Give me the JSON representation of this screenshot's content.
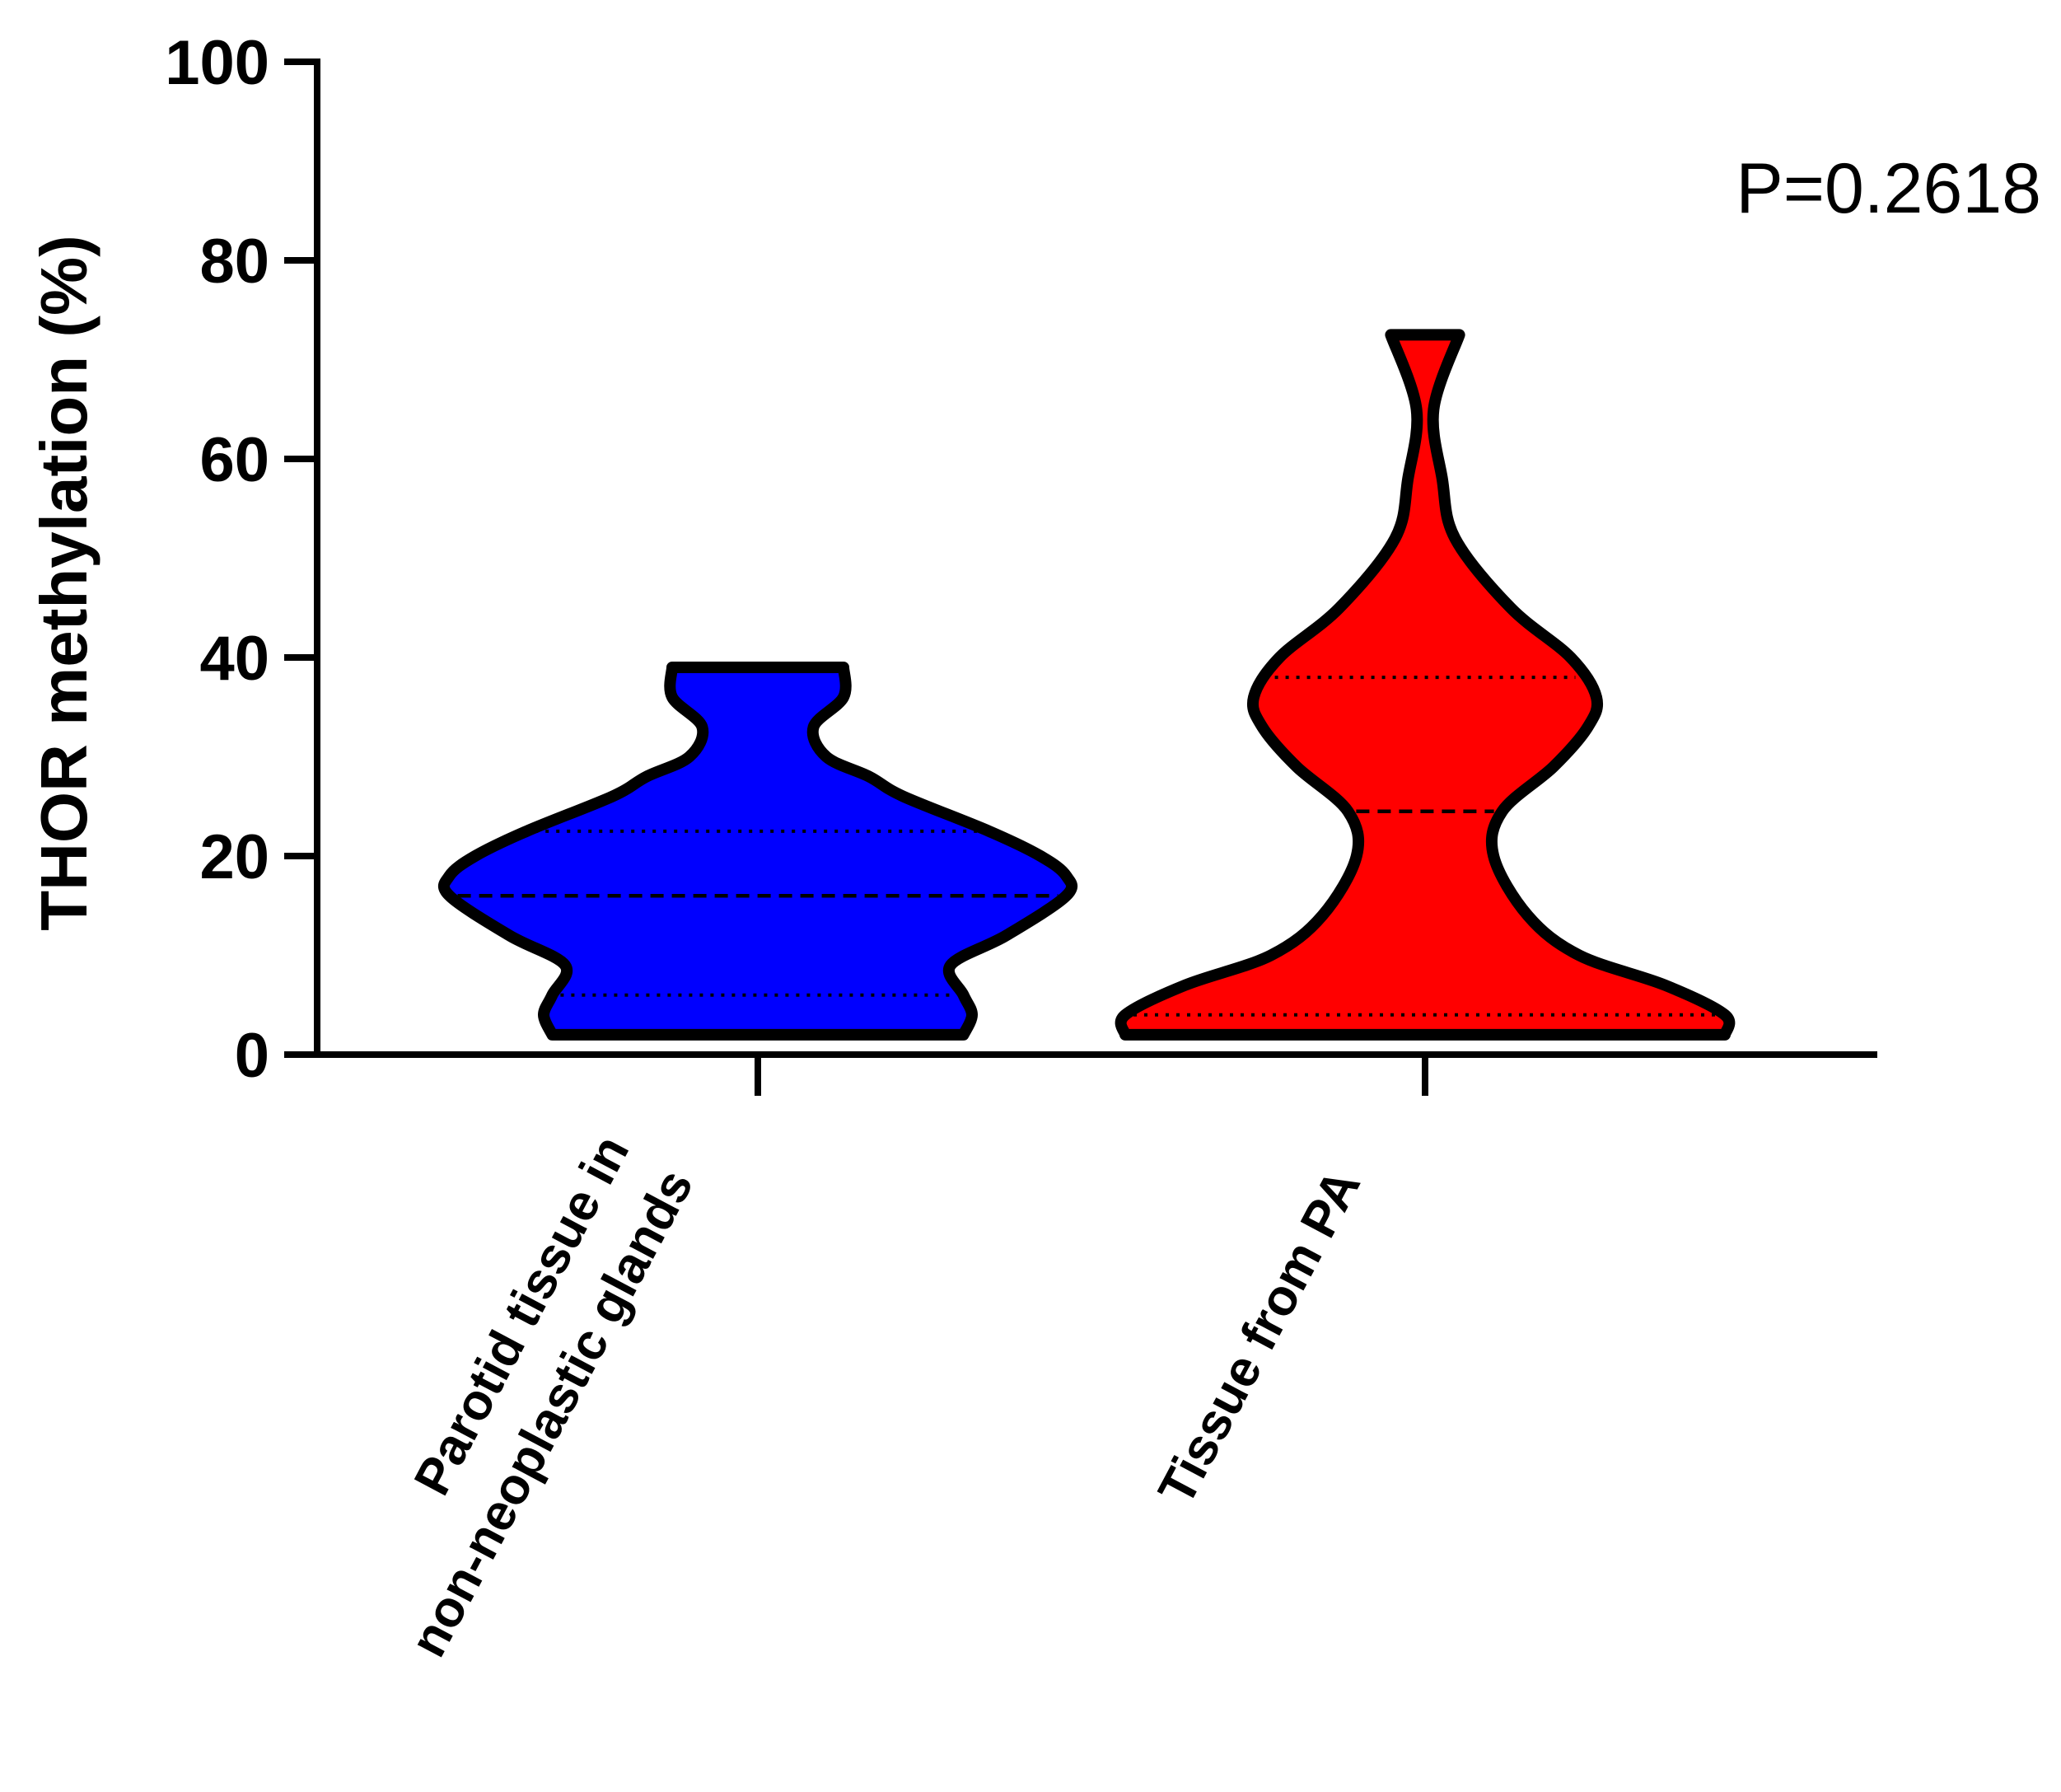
{
  "chart_data": {
    "type": "violin",
    "title": "",
    "xlabel": "",
    "ylabel": "THOR methylation (%)",
    "ylim": [
      0,
      100
    ],
    "yticks": [
      0,
      20,
      40,
      60,
      80,
      100
    ],
    "annotation": "P=0.2618",
    "grid": false,
    "categories": [
      "Parotid tissue in\nnon-neoplastic glands",
      "Tissue from PA"
    ],
    "series": [
      {
        "category": "Parotid tissue in\nnon-neoplastic glands",
        "color": "#0000ff",
        "min": 2,
        "max": 39,
        "median": 16,
        "q1": 6,
        "q3": 22.5,
        "profile": [
          [
            2,
            0.48
          ],
          [
            4,
            0.5
          ],
          [
            6,
            0.48
          ],
          [
            9,
            0.45
          ],
          [
            12,
            0.58
          ],
          [
            16,
            0.72
          ],
          [
            18,
            0.72
          ],
          [
            20,
            0.66
          ],
          [
            22.5,
            0.54
          ],
          [
            26,
            0.34
          ],
          [
            28,
            0.26
          ],
          [
            30,
            0.16
          ],
          [
            33,
            0.13
          ],
          [
            36,
            0.2
          ],
          [
            39,
            0.2
          ]
        ]
      },
      {
        "category": "Tissue from PA",
        "color": "#ff0000",
        "min": 2,
        "max": 72.5,
        "median": 24.5,
        "q1": 4,
        "q3": 38,
        "profile": [
          [
            2,
            0.7
          ],
          [
            4,
            0.7
          ],
          [
            7,
            0.56
          ],
          [
            10,
            0.36
          ],
          [
            14,
            0.24
          ],
          [
            20,
            0.16
          ],
          [
            24.5,
            0.18
          ],
          [
            29,
            0.3
          ],
          [
            33,
            0.38
          ],
          [
            36,
            0.4
          ],
          [
            40,
            0.34
          ],
          [
            45,
            0.2
          ],
          [
            52,
            0.07
          ],
          [
            58,
            0.04
          ],
          [
            65,
            0.02
          ],
          [
            72.5,
            0.08
          ]
        ]
      }
    ]
  }
}
